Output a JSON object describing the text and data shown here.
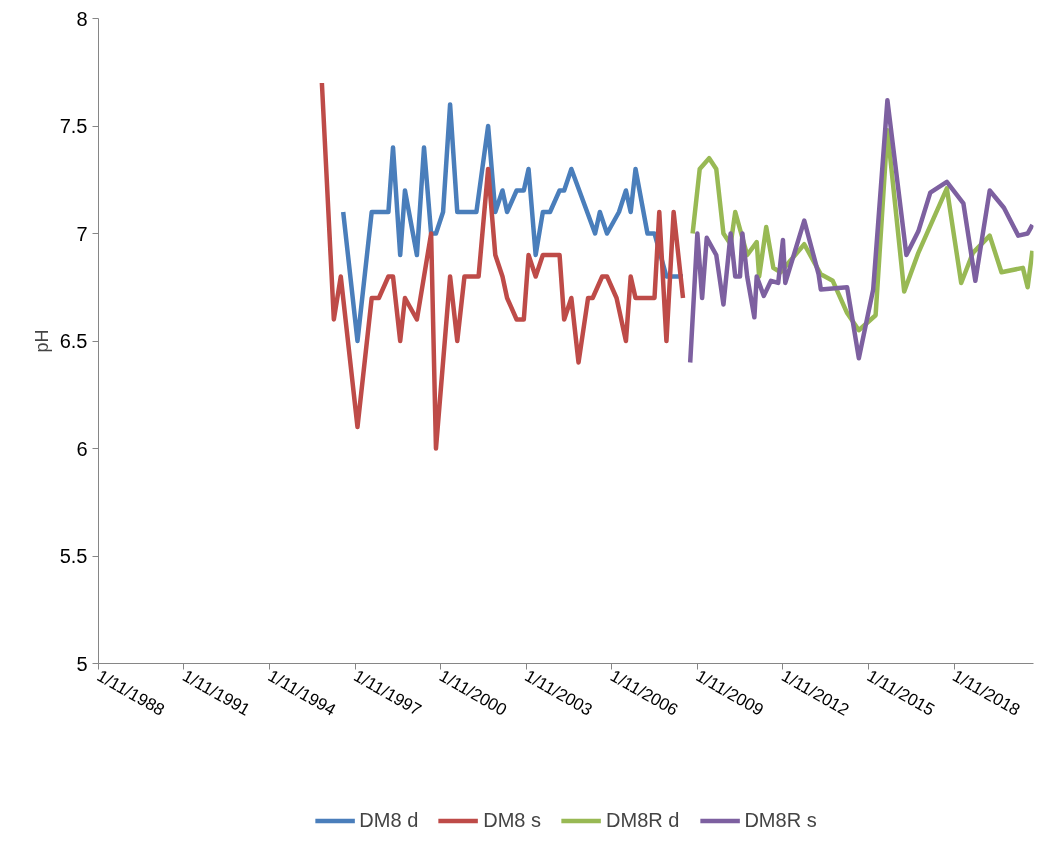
{
  "chart_data": {
    "type": "line",
    "ylabel": "pH",
    "ylim": [
      5,
      8
    ],
    "yticks": [
      5,
      5.5,
      6,
      6.5,
      7,
      7.5,
      8
    ],
    "xlim": [
      "1988-11-01",
      "2021-08-15"
    ],
    "xticks": [
      {
        "value": "1988-11-01",
        "label": "1/11/1988"
      },
      {
        "value": "1991-11-01",
        "label": "1/11/1991"
      },
      {
        "value": "1994-11-01",
        "label": "1/11/1994"
      },
      {
        "value": "1997-11-01",
        "label": "1/11/1997"
      },
      {
        "value": "2000-11-01",
        "label": "1/11/2000"
      },
      {
        "value": "2003-11-01",
        "label": "1/11/2003"
      },
      {
        "value": "2006-11-01",
        "label": "1/11/2006"
      },
      {
        "value": "2009-11-01",
        "label": "1/11/2009"
      },
      {
        "value": "2012-11-01",
        "label": "1/11/2012"
      },
      {
        "value": "2015-11-01",
        "label": "1/11/2015"
      },
      {
        "value": "2018-11-01",
        "label": "1/11/2018"
      }
    ],
    "legend": "bottom",
    "marker": "none",
    "line_style": "solid",
    "series": [
      {
        "name": "DM8 d",
        "color": "#4a7ebb",
        "x": [
          "1997-06",
          "1997-12",
          "1998-06",
          "1999-01",
          "1999-03",
          "1999-06",
          "1999-08",
          "2000-01",
          "2000-04",
          "2000-07",
          "2000-09",
          "2000-12",
          "2001-03",
          "2001-06",
          "2002-02",
          "2002-07",
          "2002-10",
          "2003-01",
          "2003-03",
          "2003-07",
          "2003-10",
          "2003-12",
          "2004-03",
          "2004-06",
          "2004-09",
          "2005-01",
          "2005-03",
          "2005-06",
          "2006-04",
          "2006-06",
          "2006-09",
          "2007-02",
          "2007-05",
          "2007-07",
          "2007-09",
          "2008-02",
          "2008-05",
          "2008-10",
          "2009-05"
        ],
        "values": [
          7.1,
          6.5,
          7.1,
          7.1,
          7.4,
          6.9,
          7.2,
          6.9,
          7.4,
          7.0,
          7.0,
          7.1,
          7.6,
          7.1,
          7.1,
          7.5,
          7.1,
          7.2,
          7.1,
          7.2,
          7.2,
          7.3,
          6.9,
          7.1,
          7.1,
          7.2,
          7.2,
          7.3,
          7.0,
          7.1,
          7.0,
          7.1,
          7.2,
          7.1,
          7.3,
          7.0,
          7.0,
          6.8,
          6.8
        ]
      },
      {
        "name": "DM8 s",
        "color": "#be4b48",
        "x": [
          "1996-09",
          "1997-02",
          "1997-05",
          "1997-12",
          "1998-06",
          "1998-09",
          "1999-01",
          "1999-03",
          "1999-06",
          "1999-08",
          "2000-01",
          "2000-07",
          "2000-09",
          "2001-03",
          "2001-06",
          "2001-09",
          "2002-03",
          "2002-07",
          "2002-10",
          "2003-01",
          "2003-03",
          "2003-07",
          "2003-10",
          "2003-12",
          "2004-03",
          "2004-06",
          "2005-01",
          "2005-03",
          "2005-06",
          "2005-09",
          "2006-01",
          "2006-03",
          "2006-07",
          "2006-09",
          "2007-01",
          "2007-05",
          "2007-07",
          "2007-09",
          "2008-05",
          "2008-07",
          "2008-10",
          "2009-01",
          "2009-05"
        ],
        "values": [
          7.7,
          6.6,
          6.8,
          6.1,
          6.7,
          6.7,
          6.8,
          6.8,
          6.5,
          6.7,
          6.6,
          7.0,
          6.0,
          6.8,
          6.5,
          6.8,
          6.8,
          7.3,
          6.9,
          6.8,
          6.7,
          6.6,
          6.6,
          6.9,
          6.8,
          6.9,
          6.9,
          6.6,
          6.7,
          6.4,
          6.7,
          6.7,
          6.8,
          6.8,
          6.7,
          6.5,
          6.8,
          6.7,
          6.7,
          7.1,
          6.5,
          7.1,
          6.7
        ]
      },
      {
        "name": "DM8R d",
        "color": "#98b954",
        "x": [
          "2009-09",
          "2009-12",
          "2010-04",
          "2010-07",
          "2010-10",
          "2011-01",
          "2011-03",
          "2011-08",
          "2011-12",
          "2012-01",
          "2012-04",
          "2012-07",
          "2012-10",
          "2013-08",
          "2014-03",
          "2014-08",
          "2015-02",
          "2015-07",
          "2016-02",
          "2016-07",
          "2017-02",
          "2017-08",
          "2018-08",
          "2019-02",
          "2019-07",
          "2020-02",
          "2020-07",
          "2021-04",
          "2021-06",
          "2021-08"
        ],
        "values": [
          7.0,
          7.3,
          7.35,
          7.3,
          7.0,
          6.95,
          7.1,
          6.9,
          6.96,
          6.8,
          7.03,
          6.84,
          6.82,
          6.95,
          6.81,
          6.78,
          6.63,
          6.55,
          6.62,
          7.48,
          6.73,
          6.91,
          7.21,
          6.77,
          6.91,
          6.99,
          6.82,
          6.84,
          6.75,
          6.92
        ]
      },
      {
        "name": "DM8R s",
        "color": "#7d60a0",
        "x": [
          "2009-08",
          "2009-11",
          "2010-01",
          "2010-03",
          "2010-07",
          "2010-10",
          "2011-01",
          "2011-03",
          "2011-05",
          "2011-06",
          "2011-08",
          "2011-11",
          "2011-12",
          "2012-03",
          "2012-06",
          "2012-09",
          "2012-11",
          "2012-12",
          "2013-08",
          "2014-02",
          "2014-03",
          "2015-02",
          "2015-07",
          "2016-01",
          "2016-07",
          "2017-03",
          "2017-08",
          "2018-01",
          "2018-08",
          "2019-03",
          "2019-08",
          "2020-02",
          "2020-08",
          "2021-02",
          "2021-06",
          "2021-08"
        ],
        "values": [
          6.4,
          7.0,
          6.7,
          6.98,
          6.9,
          6.67,
          7.0,
          6.8,
          6.8,
          7.0,
          6.8,
          6.61,
          6.8,
          6.71,
          6.78,
          6.77,
          6.97,
          6.77,
          7.06,
          6.81,
          6.74,
          6.75,
          6.42,
          6.74,
          7.62,
          6.9,
          7.01,
          7.19,
          7.24,
          7.14,
          6.78,
          7.2,
          7.12,
          6.99,
          7.0,
          7.04
        ]
      }
    ]
  }
}
